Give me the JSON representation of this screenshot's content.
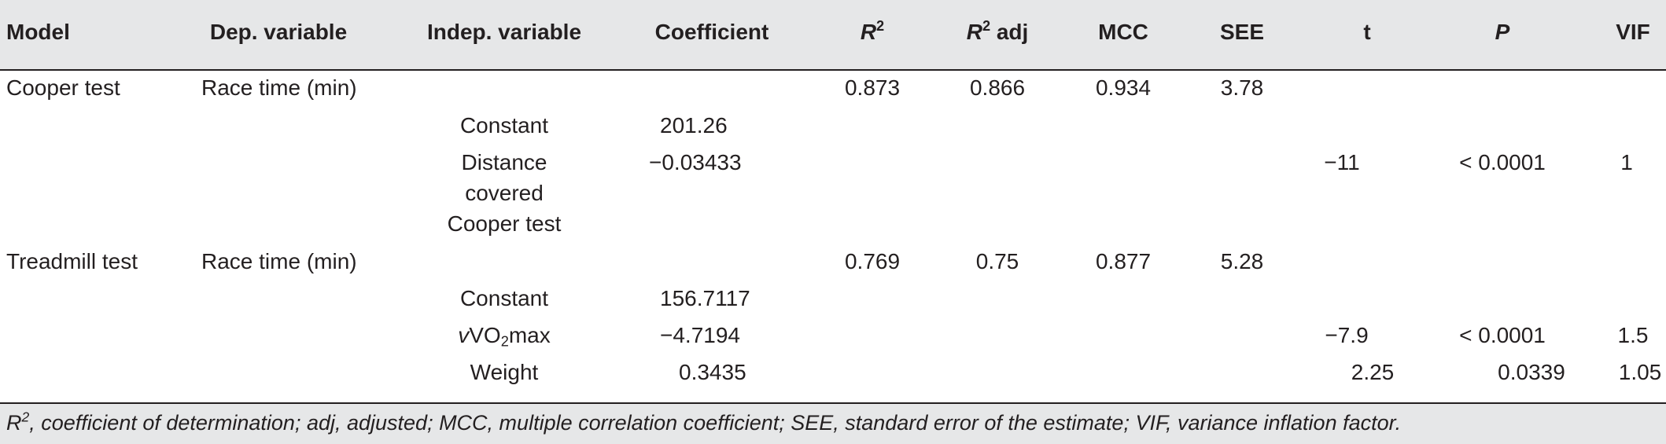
{
  "headers": {
    "model": "Model",
    "dep_variable": "Dep. variable",
    "indep_variable": "Indep. variable",
    "coefficient": "Coefficient",
    "r2_base": "R",
    "r2_sup": "2",
    "r2adj_base": "R",
    "r2adj_sup": "2",
    "r2adj_suffix": " adj",
    "mcc": "MCC",
    "see": "SEE",
    "t": "t",
    "p": "P",
    "vif": "VIF"
  },
  "rows": {
    "cooper": {
      "model": "Cooper test",
      "dep": "Race time (min)",
      "r2": "0.873",
      "r2adj": "0.866",
      "mcc": "0.934",
      "see": "3.78",
      "constant_label": "Constant",
      "constant_coef": "201.26",
      "dist_label_1": "Distance",
      "dist_label_2": "covered",
      "dist_label_3": "Cooper test",
      "dist_coef": "−0.03433",
      "dist_t": "−11",
      "dist_p": "< 0.0001",
      "dist_vif": "1"
    },
    "treadmill": {
      "model": "Treadmill test",
      "dep": "Race time (min)",
      "r2": "0.769",
      "r2adj": "0.75",
      "mcc": "0.877",
      "see": "5.28",
      "constant_label": "Constant",
      "constant_coef": "156.7117",
      "vvo2_prefix": "v",
      "vvo2_vo": "VO",
      "vvo2_sub": "2",
      "vvo2_suffix": "max",
      "vvo2_coef": "−4.7194",
      "vvo2_t": "−7.9",
      "vvo2_p": "< 0.0001",
      "vvo2_vif": "1.5",
      "weight_label": "Weight",
      "weight_coef": "0.3435",
      "weight_t": "2.25",
      "weight_p": "0.0339",
      "weight_vif": "1.05"
    }
  },
  "footnote": {
    "r_base": "R",
    "r_sup": "2",
    "text": ", coefficient of determination; adj, adjusted; MCC, multiple correlation coefficient; SEE, standard error of the estimate; VIF, variance inflation factor."
  }
}
